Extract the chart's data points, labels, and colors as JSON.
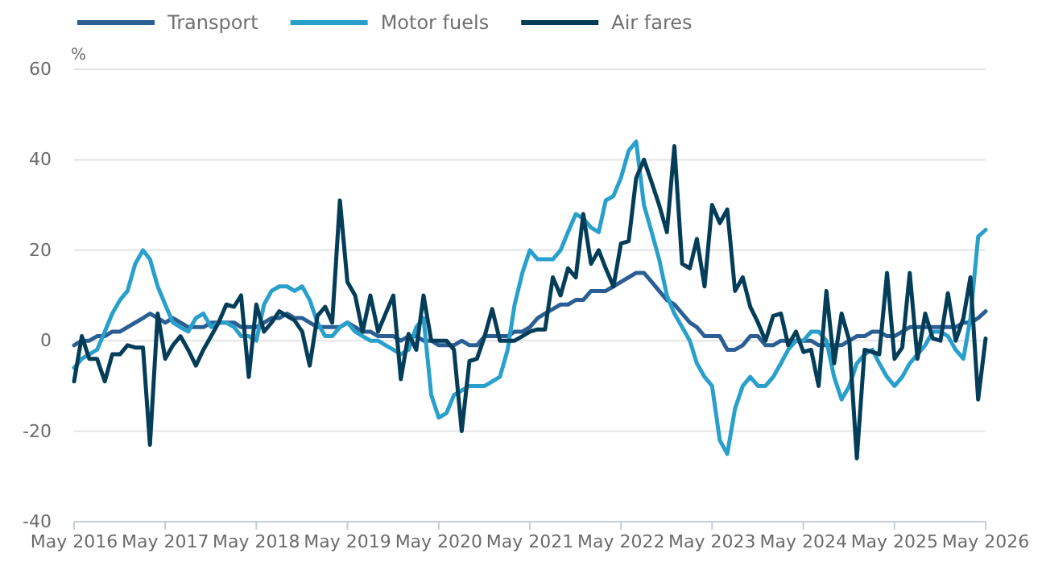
{
  "chart_data": {
    "type": "line",
    "ylabel": "%",
    "legend": "top left",
    "grid": "y",
    "line_style": "solid",
    "marker": "none",
    "x": [
      "2016-05",
      "2016-06",
      "2016-07",
      "2016-08",
      "2016-09",
      "2016-10",
      "2016-11",
      "2016-12",
      "2017-01",
      "2017-02",
      "2017-03",
      "2017-04",
      "2017-05",
      "2017-06",
      "2017-07",
      "2017-08",
      "2017-09",
      "2017-10",
      "2017-11",
      "2017-12",
      "2018-01",
      "2018-02",
      "2018-03",
      "2018-04",
      "2018-05",
      "2018-06",
      "2018-07",
      "2018-08",
      "2018-09",
      "2018-10",
      "2018-11",
      "2018-12",
      "2019-01",
      "2019-02",
      "2019-03",
      "2019-04",
      "2019-05",
      "2019-06",
      "2019-07",
      "2019-08",
      "2019-09",
      "2019-10",
      "2019-11",
      "2019-12",
      "2020-01",
      "2020-02",
      "2020-03",
      "2020-04",
      "2020-05",
      "2020-06",
      "2020-07",
      "2020-08",
      "2020-09",
      "2020-10",
      "2020-11",
      "2020-12",
      "2021-01",
      "2021-02",
      "2021-03",
      "2021-04",
      "2021-05",
      "2021-06",
      "2021-07",
      "2021-08",
      "2021-09",
      "2021-10",
      "2021-11",
      "2021-12",
      "2022-01",
      "2022-02",
      "2022-03",
      "2022-04",
      "2022-05",
      "2022-06",
      "2022-07",
      "2022-08",
      "2022-09",
      "2022-10",
      "2022-11",
      "2022-12",
      "2023-01",
      "2023-02",
      "2023-03",
      "2023-04",
      "2023-05",
      "2023-06",
      "2023-07",
      "2023-08",
      "2023-09",
      "2023-10",
      "2023-11",
      "2023-12",
      "2024-01",
      "2024-02",
      "2024-03",
      "2024-04",
      "2024-05",
      "2024-06",
      "2024-07",
      "2024-08",
      "2024-09",
      "2024-10",
      "2024-11",
      "2024-12",
      "2025-01",
      "2025-02",
      "2025-03",
      "2025-04",
      "2025-05",
      "2025-06",
      "2025-07",
      "2025-08",
      "2025-09",
      "2025-10",
      "2025-11",
      "2025-12",
      "2026-01",
      "2026-02",
      "2026-03",
      "2026-04",
      "2026-05"
    ],
    "xlim": [
      "2016-05",
      "2026-05"
    ],
    "xticks": [
      {
        "value": "2016-05",
        "label": "May 2016"
      },
      {
        "value": "2017-05",
        "label": "May 2017"
      },
      {
        "value": "2018-05",
        "label": "May 2018"
      },
      {
        "value": "2019-05",
        "label": "May 2019"
      },
      {
        "value": "2020-05",
        "label": "May 2020"
      },
      {
        "value": "2021-05",
        "label": "May 2021"
      },
      {
        "value": "2022-05",
        "label": "May 2022"
      },
      {
        "value": "2023-05",
        "label": "May 2023"
      },
      {
        "value": "2024-05",
        "label": "May 2024"
      },
      {
        "value": "2025-05",
        "label": "May 2025"
      },
      {
        "value": "2026-05",
        "label": "May 2026"
      }
    ],
    "ylim": [
      -40,
      60
    ],
    "yticks": [
      -40,
      -20,
      0,
      20,
      40,
      60
    ],
    "series": [
      {
        "name": "Transport",
        "color": "#2b5f94",
        "values": [
          -1,
          0,
          0,
          1,
          1,
          2,
          2,
          3,
          4,
          5,
          6,
          5,
          4,
          5,
          4,
          3,
          3,
          3,
          4,
          4,
          4,
          4,
          3,
          3,
          3,
          4,
          5,
          5,
          6,
          5,
          5,
          4,
          3,
          3,
          3,
          3,
          4,
          3,
          2,
          2,
          1,
          1,
          1,
          0,
          1,
          1,
          0,
          0,
          -1,
          -1,
          -1,
          0,
          -1,
          -1,
          1,
          1,
          1,
          1,
          2,
          2,
          3,
          5,
          6,
          7,
          8,
          8,
          9,
          9,
          11,
          11,
          11,
          12,
          13,
          14,
          15,
          15,
          13,
          11,
          9,
          8,
          6,
          4,
          3,
          1,
          1,
          1,
          -2,
          -2,
          -1,
          1,
          1,
          -1,
          -1,
          0,
          0,
          0,
          0,
          0,
          -1,
          -1,
          -1,
          -1,
          0,
          1,
          1,
          2,
          2,
          1,
          1,
          2,
          3,
          3,
          3,
          3,
          3,
          3,
          3,
          4,
          4,
          5,
          6.5
        ]
      },
      {
        "name": "Motor fuels",
        "color": "#28a0cb",
        "values": [
          -6,
          -4,
          -3,
          -2,
          2,
          6,
          9,
          11,
          17,
          20,
          18,
          12,
          8,
          4,
          3,
          2,
          5,
          6,
          3,
          4,
          4,
          3,
          1,
          1,
          0,
          8,
          11,
          12,
          12,
          11,
          12,
          9,
          4,
          1,
          1,
          3,
          4,
          2,
          1,
          0,
          0,
          -1,
          -2,
          -3,
          -2,
          3,
          5,
          -12,
          -17,
          -16,
          -12,
          -11,
          -10,
          -10,
          -10,
          -9,
          -8,
          -2,
          8,
          15,
          20,
          18,
          18,
          18,
          20,
          24,
          28,
          27,
          25,
          24,
          31,
          32,
          36,
          42,
          44,
          30,
          24,
          18,
          10,
          6,
          3,
          0,
          -5,
          -8,
          -10,
          -22,
          -25,
          -15,
          -10,
          -8,
          -10,
          -10,
          -8,
          -5,
          -2,
          0,
          0,
          2,
          2,
          0,
          -8,
          -13,
          -10,
          -5,
          -3,
          -2,
          -5,
          -8,
          -10,
          -8,
          -5,
          -3,
          -1,
          2,
          2,
          1,
          -2,
          -4,
          5,
          23,
          24.5
        ]
      },
      {
        "name": "Air fares",
        "color": "#033d58",
        "values": [
          -9,
          1,
          -4,
          -4,
          -9,
          -3,
          -3,
          -1,
          -1.5,
          -1.5,
          -23,
          6,
          -4,
          -1,
          1,
          -2,
          -5.5,
          -2,
          1,
          4,
          8,
          7.5,
          10,
          -8,
          8,
          2,
          4,
          6.5,
          5.5,
          4.5,
          2,
          -5.5,
          5.5,
          7.5,
          4,
          31,
          13,
          10,
          2,
          10,
          2,
          6,
          10,
          -8.5,
          1.5,
          -2,
          10,
          0,
          0,
          0,
          -2,
          -20,
          -4.5,
          -4,
          1,
          7,
          0,
          0,
          0,
          1,
          2,
          2.5,
          2.5,
          14,
          10,
          16,
          14,
          28,
          17,
          20,
          16,
          12,
          21.5,
          22,
          36,
          40,
          35,
          30,
          24,
          43,
          17,
          16,
          22.5,
          12,
          30,
          26,
          29,
          11,
          14,
          7.5,
          4,
          0,
          5.5,
          6,
          -1,
          2,
          -2.5,
          -2,
          -10,
          11,
          -5,
          6,
          0,
          -26,
          -2,
          -2.5,
          -3,
          15,
          -4,
          -1.5,
          15,
          -4,
          6,
          0.5,
          0,
          10.5,
          0,
          5,
          14,
          -13,
          0.5
        ]
      }
    ]
  }
}
